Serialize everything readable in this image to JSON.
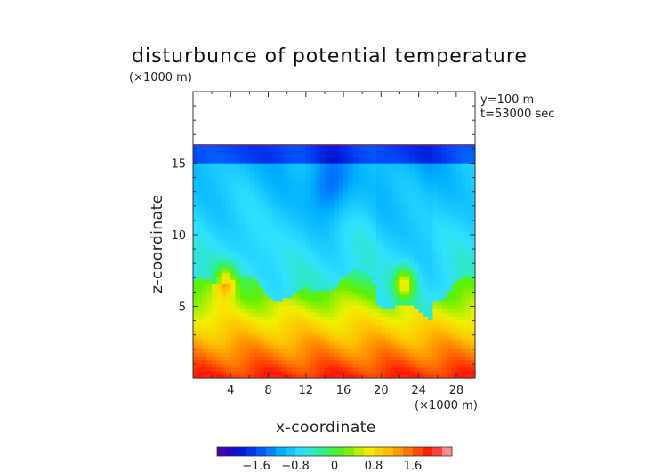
{
  "chart_data": {
    "type": "heatmap",
    "title": "disturbunce of potential temperature",
    "unit_y": "(×1000 m)",
    "unit_x": "(×1000 m)",
    "annotations": [
      "y=100 m",
      "t=53000 sec"
    ],
    "xlabel": "x-coordinate",
    "ylabel": "z-coordinate",
    "xlim": [
      0,
      30
    ],
    "ylim": [
      0,
      20
    ],
    "x_ticks": [
      4,
      8,
      12,
      16,
      20,
      24,
      28
    ],
    "y_ticks": [
      5,
      10,
      15
    ],
    "field_top_z": 16.3,
    "colorbar": {
      "ticks": [
        "−1.6",
        "−0.8",
        "0",
        "0.8",
        "1.6"
      ],
      "tick_values": [
        -1.6,
        -0.8,
        0,
        0.8,
        1.6
      ],
      "range": [
        -2.4,
        2.4
      ],
      "colors": [
        "#5a00a0",
        "#0010d0",
        "#0050ff",
        "#00b0ff",
        "#30e0ff",
        "#30f080",
        "#60f000",
        "#f0f000",
        "#ffc000",
        "#ff7000",
        "#ff1000",
        "#ffb0c0"
      ]
    }
  }
}
